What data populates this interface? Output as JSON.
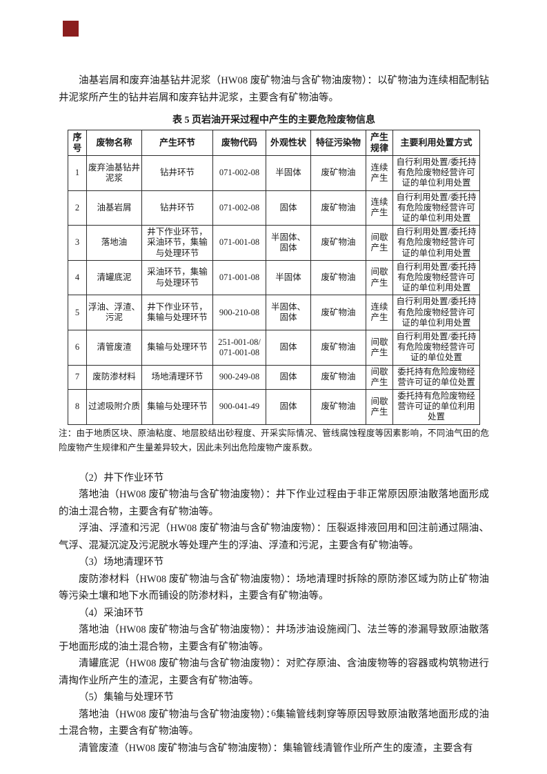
{
  "page_number": "6",
  "marker_color": "#8b1e1e",
  "intro": "油基岩屑和废弃油基钻井泥浆（HW08 废矿物油与含矿物油废物）：以矿物油为连续相配制钻井泥浆所产生的钻井岩屑和废弃钻井泥浆，主要含有矿物油等。",
  "table": {
    "title": "表 5 页岩油开采过程中产生的主要危险废物信息",
    "headers": [
      "序号",
      "废物名称",
      "产生环节",
      "废物代码",
      "外观性状",
      "特征污染物",
      "产生规律",
      "主要利用处置方式"
    ],
    "rows": [
      [
        "1",
        "废弃油基钻井泥浆",
        "钻井环节",
        "071-002-08",
        "半固体",
        "废矿物油",
        "连续产生",
        "自行利用处置/委托持有危险废物经营许可证的单位利用处置"
      ],
      [
        "2",
        "油基岩屑",
        "钻井环节",
        "071-002-08",
        "固体",
        "废矿物油",
        "连续产生",
        "自行利用处置/委托持有危险废物经营许可证的单位利用处置"
      ],
      [
        "3",
        "落地油",
        "井下作业环节，采油环节，集输与处理环节",
        "071-001-08",
        "半固体、固体",
        "废矿物油",
        "间歇产生",
        "自行利用处置/委托持有危险废物经营许可证的单位利用处置"
      ],
      [
        "4",
        "清罐底泥",
        "采油环节，集输与处理环节",
        "071-001-08",
        "半固体",
        "废矿物油",
        "间歇产生",
        "自行利用处置/委托持有危险废物经营许可证的单位利用处置"
      ],
      [
        "5",
        "浮油、浮渣、污泥",
        "井下作业环节，集输与处理环节",
        "900-210-08",
        "半固体、固体",
        "废矿物油",
        "连续产生",
        "自行利用处置/委托持有危险废物经营许可证的单位利用处置"
      ],
      [
        "6",
        "清管废渣",
        "集输与处理环节",
        "251-001-08/\n071-001-08",
        "固体",
        "废矿物油",
        "间歇产生",
        "自行利用处置/委托持有危险废物经营许可证的单位处置"
      ],
      [
        "7",
        "废防渗材料",
        "场地清理环节",
        "900-249-08",
        "固体",
        "废矿物油",
        "间歇产生",
        "委托持有危险废物经营许可证的单位处置"
      ],
      [
        "8",
        "过滤吸附介质",
        "集输与处理环节",
        "900-041-49",
        "固体",
        "废矿物油",
        "间歇产生",
        "委托持有危险废物经营许可证的单位利用处置"
      ]
    ],
    "note": "注：由于地质区块、原油粘度、地层胶结出砂程度、开采实际情况、管线腐蚀程度等因素影响，不同油气田的危险废物产生规律和产生量差异较大，因此未列出危险废物产废系数。"
  },
  "paragraphs": [
    {
      "type": "heading",
      "text": "（2）井下作业环节"
    },
    {
      "type": "para",
      "text": "落地油（HW08 废矿物油与含矿物油废物）：井下作业过程由于非正常原因原油散落地面形成的油土混合物，主要含有矿物油等。"
    },
    {
      "type": "para",
      "text": "浮油、浮渣和污泥（HW08 废矿物油与含矿物油废物）：压裂返排液回用和回注前通过隔油、气浮、混凝沉淀及污泥脱水等处理产生的浮油、浮渣和污泥，主要含有矿物油等。"
    },
    {
      "type": "heading",
      "text": "（3）场地清理环节"
    },
    {
      "type": "para",
      "text": "废防渗材料（HW08 废矿物油与含矿物油废物）：场地清理时拆除的原防渗区域为防止矿物油等污染土壤和地下水而铺设的防渗材料，主要含有矿物油等。"
    },
    {
      "type": "heading",
      "text": "（4）采油环节"
    },
    {
      "type": "para",
      "text": "落地油（HW08 废矿物油与含矿物油废物）：井场涉油设施阀门、法兰等的渗漏导致原油散落于地面形成的油土混合物，主要含有矿物油等。"
    },
    {
      "type": "para",
      "text": "清罐底泥（HW08 废矿物油与含矿物油废物）：对贮存原油、含油废物等的容器或构筑物进行清掏作业所产生的渣泥，主要含有矿物油等。"
    },
    {
      "type": "heading",
      "text": "（5）集输与处理环节"
    },
    {
      "type": "para",
      "text": "落地油（HW08 废矿物油与含矿物油废物）：集输管线刺穿等原因导致原油散落地面形成的油土混合物，主要含有矿物油等。"
    },
    {
      "type": "para",
      "text": "清管废渣（HW08 废矿物油与含矿物油废物）：集输管线清管作业所产生的废渣，主要含有"
    }
  ]
}
